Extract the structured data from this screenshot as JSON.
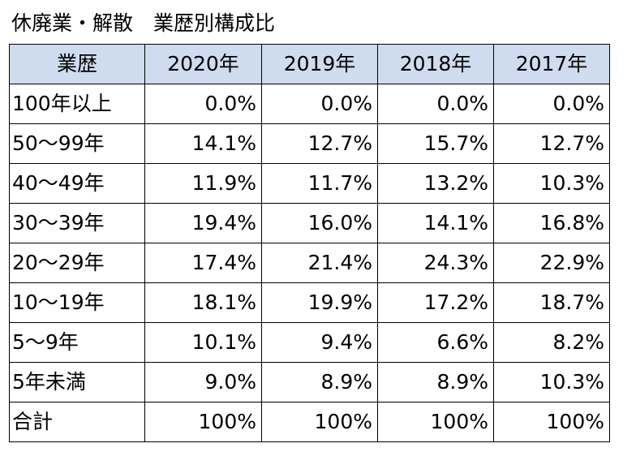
{
  "title": "休廃業・解散　業歴別構成比",
  "table": {
    "headers": [
      "業歴",
      "2020年",
      "2019年",
      "2018年",
      "2017年"
    ],
    "rows": [
      {
        "label": "100年以上",
        "values": [
          "0.0%",
          "0.0%",
          "0.0%",
          "0.0%"
        ]
      },
      {
        "label": "50～99年",
        "values": [
          "14.1%",
          "12.7%",
          "15.7%",
          "12.7%"
        ]
      },
      {
        "label": "40～49年",
        "values": [
          "11.9%",
          "11.7%",
          "13.2%",
          "10.3%"
        ]
      },
      {
        "label": "30～39年",
        "values": [
          "19.4%",
          "16.0%",
          "14.1%",
          "16.8%"
        ]
      },
      {
        "label": "20～29年",
        "values": [
          "17.4%",
          "21.4%",
          "24.3%",
          "22.9%"
        ]
      },
      {
        "label": "10～19年",
        "values": [
          "18.1%",
          "19.9%",
          "17.2%",
          "18.7%"
        ]
      },
      {
        "label": "5～9年",
        "values": [
          "10.1%",
          "9.4%",
          "6.6%",
          "8.2%"
        ]
      },
      {
        "label": "5年未満",
        "values": [
          "9.0%",
          "8.9%",
          "8.9%",
          "10.3%"
        ]
      },
      {
        "label": "合計",
        "values": [
          "100%",
          "100%",
          "100%",
          "100%"
        ]
      }
    ]
  },
  "colors": {
    "header_background": "#cfdcef",
    "border": "#000000",
    "text": "#000000"
  }
}
